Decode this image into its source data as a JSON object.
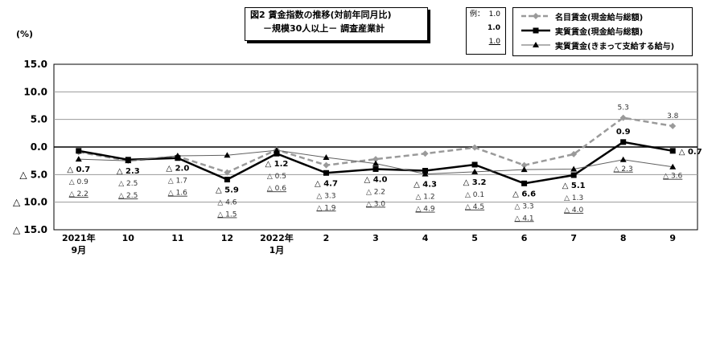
{
  "title": {
    "line1": "図2  賃金指数の推移(対前年同月比)",
    "line2": "－規模30人以上－  調査産業計"
  },
  "y_unit": "(%)",
  "example": {
    "label": "例：",
    "v1": "1.0",
    "v2": "1.0",
    "v3": "1.0"
  },
  "legend": [
    {
      "name": "名目賃金(現金給与総額)",
      "color": "#9a9a9a",
      "style": "dashed",
      "marker": "diamond"
    },
    {
      "name": "実質賃金(現金給与総額)",
      "color": "#000000",
      "style": "solid",
      "marker": "square"
    },
    {
      "name": "実質賃金(きまって支給する給与)",
      "color": "#606060",
      "style": "solid",
      "marker": "triangle"
    }
  ],
  "chart_data": {
    "type": "line",
    "categories": [
      [
        "2021年",
        "9月"
      ],
      [
        "10"
      ],
      [
        "11"
      ],
      [
        "12"
      ],
      [
        "2022年",
        "1月"
      ],
      [
        "2"
      ],
      [
        "3"
      ],
      [
        "4"
      ],
      [
        "5"
      ],
      [
        "6"
      ],
      [
        "7"
      ],
      [
        "8"
      ],
      [
        "9"
      ]
    ],
    "ylim": [
      -15.0,
      15.0
    ],
    "yticks": [
      "15.0",
      "10.0",
      "5.0",
      "0.0",
      "△ 5.0",
      "△ 10.0",
      "△ 15.0"
    ],
    "ytick_values": [
      15,
      10,
      5,
      0,
      -5,
      -10,
      -15
    ],
    "grid": true,
    "series": [
      {
        "name": "名目賃金(現金給与総額)",
        "values": [
          -0.9,
          -2.5,
          -1.7,
          -4.6,
          -0.5,
          -3.3,
          -2.2,
          -1.2,
          -0.1,
          -3.3,
          -1.3,
          5.3,
          3.8
        ],
        "labels": [
          "△ 0.9",
          "△ 2.5",
          "△ 1.7",
          "△ 4.6",
          "△ 0.5",
          "△ 3.3",
          "△ 2.2",
          "△ 1.2",
          "△ 0.1",
          "△ 3.3",
          "△ 1.3",
          "5.3",
          "3.8"
        ]
      },
      {
        "name": "実質賃金(現金給与総額)",
        "values": [
          -0.7,
          -2.3,
          -2.0,
          -5.9,
          -1.2,
          -4.7,
          -4.0,
          -4.3,
          -3.2,
          -6.6,
          -5.1,
          0.9,
          -0.7
        ],
        "labels": [
          "△ 0.7",
          "△ 2.3",
          "△ 2.0",
          "△ 5.9",
          "△ 1.2",
          "△ 4.7",
          "△ 4.0",
          "△ 4.3",
          "△ 3.2",
          "△ 6.6",
          "△ 5.1",
          "0.9",
          "△ 0.7"
        ]
      },
      {
        "name": "実質賃金(きまって支給する給与)",
        "values": [
          -2.2,
          -2.5,
          -1.6,
          -1.5,
          -0.6,
          -1.9,
          -3.0,
          -4.9,
          -4.5,
          -4.1,
          -4.0,
          -2.3,
          -3.6
        ],
        "labels": [
          "△ 2.2",
          "△ 2.5",
          "△ 1.6",
          "△ 1.5",
          "△ 0.6",
          "△ 1.9",
          "△ 3.0",
          "△ 4.9",
          "△ 4.5",
          "△ 4.1",
          "△ 4.0",
          "△ 2.3",
          "△ 3.6"
        ]
      }
    ]
  }
}
